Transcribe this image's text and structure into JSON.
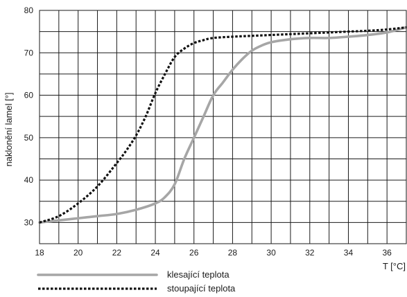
{
  "chart_data": {
    "type": "line",
    "title": "",
    "xlabel": "T [°C]",
    "ylabel": "naklonění lamel [°]",
    "xlim": [
      18,
      37
    ],
    "ylim": [
      25,
      80
    ],
    "x_ticks": [
      18,
      20,
      22,
      24,
      26,
      28,
      30,
      32,
      34,
      36
    ],
    "y_ticks": [
      30,
      40,
      50,
      60,
      70,
      80
    ],
    "grid": true,
    "legend_position": "bottom-left",
    "series": [
      {
        "name": "klesající teplota",
        "color": "#a6a6a6",
        "line_style": "solid",
        "x": [
          18,
          19,
          20,
          21,
          22,
          23,
          24,
          24.5,
          25,
          25.5,
          26,
          26.5,
          27,
          27.5,
          28,
          28.5,
          29,
          29.5,
          30,
          31,
          32,
          33,
          34,
          35,
          36,
          37
        ],
        "y": [
          30,
          30.5,
          31,
          31.5,
          32,
          33,
          34.5,
          36,
          39,
          45,
          50,
          55,
          60,
          63,
          66,
          68.5,
          70.5,
          71.7,
          72.5,
          73.2,
          73.5,
          73.5,
          73.8,
          74.2,
          74.8,
          76
        ]
      },
      {
        "name": "stoupající teplota",
        "color": "#111111",
        "line_style": "dotted",
        "x": [
          18,
          19,
          20,
          21,
          22,
          22.5,
          23,
          23.5,
          24,
          24.5,
          25,
          25.5,
          26,
          26.5,
          27,
          28,
          29,
          30,
          31,
          32,
          33,
          34,
          35,
          36,
          37
        ],
        "y": [
          30,
          31.5,
          34.5,
          38.5,
          44,
          47,
          50.5,
          55,
          60.5,
          65,
          69,
          71,
          72.3,
          73,
          73.5,
          73.8,
          74,
          74.2,
          74.4,
          74.6,
          74.8,
          75,
          75.2,
          75.5,
          76
        ]
      }
    ]
  }
}
